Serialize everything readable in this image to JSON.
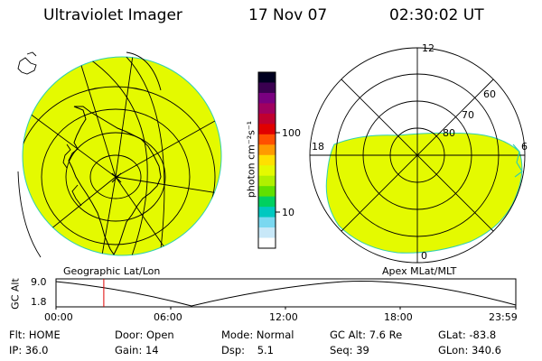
{
  "header": {
    "title": "Ultraviolet Imager",
    "date": "17 Nov 07",
    "time": "02:30:02 UT"
  },
  "left_panel": {
    "caption": "Geographic Lat/Lon",
    "fill_color": "#e4fa00"
  },
  "right_panel": {
    "caption": "Apex MLat/MLT",
    "fill_color": "#e4fa00",
    "mlt_labels": {
      "top": "12",
      "left": "18",
      "right": "6",
      "bottom": "0"
    },
    "lat_labels": [
      "60",
      "70",
      "80"
    ]
  },
  "colorbar": {
    "label": "photon cm⁻²s⁻¹",
    "ticks": [
      "100",
      "10"
    ],
    "colors": [
      "#000020",
      "#3a0050",
      "#7a0080",
      "#a00060",
      "#c00030",
      "#e00000",
      "#ff5000",
      "#ff9a00",
      "#ffe000",
      "#e4fa00",
      "#b0f000",
      "#60e000",
      "#00d060",
      "#00c8c0",
      "#7ad8f0",
      "#c8e8f8",
      "#ffffff"
    ]
  },
  "altitude_plot": {
    "ylabel": "GC Alt",
    "yticks": [
      "9.0",
      "1.8"
    ],
    "xticks": [
      "00:00",
      "06:00",
      "12:00",
      "18:00",
      "23:59"
    ],
    "current_time_fraction": 0.104
  },
  "info": {
    "rows": [
      [
        {
          "label": "Flt:",
          "value": "HOME"
        },
        {
          "label": "Door:",
          "value": "Open"
        },
        {
          "label": "Mode:",
          "value": "Normal"
        },
        {
          "label": "GC Alt:",
          "value": "7.6 Re"
        },
        {
          "label": "GLat:",
          "value": "-83.8"
        }
      ],
      [
        {
          "label": "IP:",
          "value": "36.0"
        },
        {
          "label": "Gain:",
          "value": "14"
        },
        {
          "label": "Dsp:",
          "value": "5.1"
        },
        {
          "label": "Seq:",
          "value": "39"
        },
        {
          "label": "GLon:",
          "value": "340.6"
        }
      ]
    ]
  }
}
